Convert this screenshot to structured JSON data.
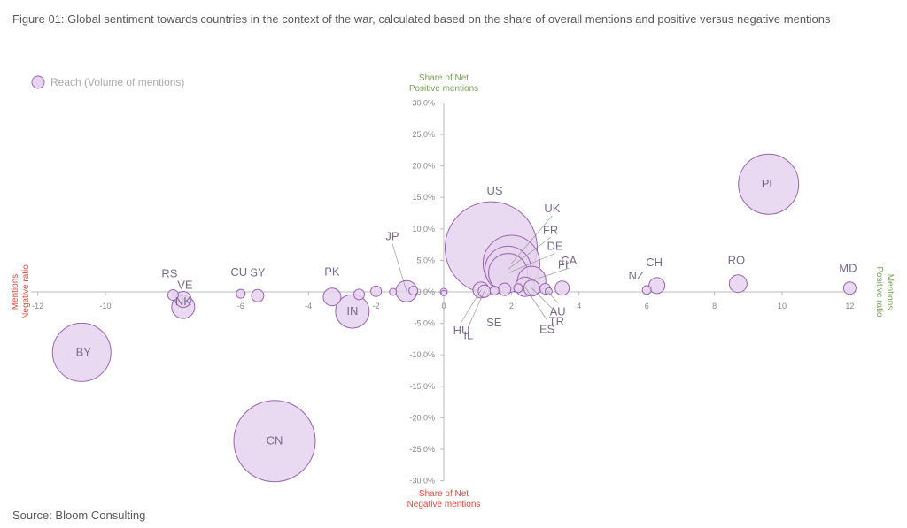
{
  "figure": {
    "title": "Figure 01: Global sentiment towards countries in the context of the war, calculated based on the share of overall mentions and positive versus negative mentions",
    "source": "Source: Bloom Consulting"
  },
  "colors": {
    "bubble_fill": "#e6d4ee",
    "bubble_stroke": "#9a63b3",
    "axis": "#bbbbbb",
    "positive": "#7aa255",
    "negative": "#e04a3a"
  },
  "chart_data": {
    "type": "scatter",
    "bubble": true,
    "legend": {
      "label": "Reach (Volume of mentions)",
      "placement": "top-left"
    },
    "axis_titles": {
      "top": [
        "Share of Net",
        "Positive mentions"
      ],
      "bottom": [
        "Share of Net",
        "Negative mentions"
      ],
      "left": [
        "Mentions",
        "Negative ratio"
      ],
      "right": [
        "Mentions",
        "Positive ratio"
      ]
    },
    "xlim": [
      -12,
      12
    ],
    "ylim": [
      -30,
      30
    ],
    "x_ticks": [
      -12,
      -10,
      -8,
      -6,
      -4,
      -2,
      0,
      2,
      4,
      6,
      8,
      10,
      12
    ],
    "x_tick_labels": [
      "-12",
      "-10",
      "",
      "-6",
      "-4",
      "-2",
      "0",
      "2",
      "4",
      "6",
      "8",
      "10",
      "12"
    ],
    "y_ticks": [
      30,
      25,
      20,
      15,
      10,
      5,
      0,
      -5,
      -10,
      -15,
      -20,
      -25,
      -30
    ],
    "y_tick_labels": [
      "30,0%",
      "25,0%",
      "20,0%",
      "15,0%",
      "10,0%",
      "5,0%",
      "0,0%",
      "-5,0%",
      "-10,0%",
      "-15,0%",
      "-20,0%",
      "-25,0%",
      "-30,0%"
    ],
    "grid": false,
    "points": [
      {
        "label": "PL",
        "x": 9.6,
        "y": 17.1,
        "r": 34
      },
      {
        "label": "US",
        "x": 1.4,
        "y": 7.0,
        "r": 52
      },
      {
        "label": "UK",
        "x": 2.0,
        "y": 4.5,
        "r": 32
      },
      {
        "label": "FR",
        "x": 1.9,
        "y": 3.6,
        "r": 26
      },
      {
        "label": "DE",
        "x": 1.9,
        "y": 3.0,
        "r": 22
      },
      {
        "label": "CA",
        "x": 2.6,
        "y": 1.8,
        "r": 16
      },
      {
        "label": "FI",
        "x": 3.5,
        "y": 0.6,
        "r": 8
      },
      {
        "label": "CH",
        "x": 6.3,
        "y": 1.0,
        "r": 9
      },
      {
        "label": "NZ",
        "x": 6.0,
        "y": 0.3,
        "r": 5
      },
      {
        "label": "RO",
        "x": 8.7,
        "y": 1.3,
        "r": 10
      },
      {
        "label": "MD",
        "x": 12.0,
        "y": 0.6,
        "r": 7
      },
      {
        "label": "AU",
        "x": 3.0,
        "y": 0.5,
        "r": 6
      },
      {
        "label": "TR",
        "x": 2.6,
        "y": 0.6,
        "r": 9
      },
      {
        "label": "ES",
        "x": 2.4,
        "y": 0.8,
        "r": 11
      },
      {
        "label": "SE",
        "x": 1.8,
        "y": 0.4,
        "r": 7
      },
      {
        "label": "IL",
        "x": 1.2,
        "y": 0.1,
        "r": 7
      },
      {
        "label": "HU",
        "x": 1.1,
        "y": 0.3,
        "r": 9
      },
      {
        "label": "JP",
        "x": -1.1,
        "y": 0.1,
        "r": 12
      },
      {
        "label": "PK",
        "x": -3.3,
        "y": -0.8,
        "r": 10
      },
      {
        "label": "IN",
        "x": -2.7,
        "y": -3.1,
        "r": 19
      },
      {
        "label": "SY",
        "x": -5.5,
        "y": -0.6,
        "r": 7
      },
      {
        "label": "CU",
        "x": -6.0,
        "y": -0.3,
        "r": 5
      },
      {
        "label": "RS",
        "x": -8.0,
        "y": -0.5,
        "r": 6
      },
      {
        "label": "VE",
        "x": -7.7,
        "y": -1.2,
        "r": 9
      },
      {
        "label": "NK",
        "x": -7.7,
        "y": -2.4,
        "r": 13
      },
      {
        "label": "BY",
        "x": -10.7,
        "y": -9.6,
        "r": 33
      },
      {
        "label": "CN",
        "x": -5.0,
        "y": -23.7,
        "r": 46
      },
      {
        "label": "",
        "x": -2.0,
        "y": 0.1,
        "r": 6
      },
      {
        "label": "",
        "x": -2.5,
        "y": -0.4,
        "r": 6
      },
      {
        "label": "",
        "x": -1.5,
        "y": 0.0,
        "r": 4
      },
      {
        "label": "",
        "x": -0.9,
        "y": 0.2,
        "r": 5
      },
      {
        "label": "",
        "x": 0.0,
        "y": 0.0,
        "r": 4
      },
      {
        "label": "",
        "x": 0.0,
        "y": -0.2,
        "r": 3
      },
      {
        "label": "",
        "x": 1.5,
        "y": 0.2,
        "r": 5
      },
      {
        "label": "",
        "x": 2.2,
        "y": 0.6,
        "r": 5
      },
      {
        "label": "",
        "x": 3.1,
        "y": 0.1,
        "r": 4
      }
    ],
    "labels": {
      "PL": {
        "dx": 0,
        "dy": 4
      },
      "US": {
        "dx": 4,
        "dy": -60
      },
      "UK": {
        "dx": 46,
        "dy": -58
      },
      "FR": {
        "dx": 48,
        "dy": -40
      },
      "DE": {
        "dx": 53,
        "dy": -26
      },
      "CA": {
        "dx": 42,
        "dy": -18
      },
      "FI": {
        "dx": 1,
        "dy": -22
      },
      "CH": {
        "dx": -3,
        "dy": -22
      },
      "NZ": {
        "dx": -12,
        "dy": -12
      },
      "RO": {
        "dx": -2,
        "dy": -22
      },
      "MD": {
        "dx": -2,
        "dy": -18
      },
      "AU": {
        "dx": 14,
        "dy": 30
      },
      "TR": {
        "dx": 28,
        "dy": 42
      },
      "ES": {
        "dx": 25,
        "dy": 52
      },
      "SE": {
        "dx": -12,
        "dy": 42
      },
      "IL": {
        "dx": -18,
        "dy": 54
      },
      "HU": {
        "dx": -22,
        "dy": 50
      },
      "JP": {
        "dx": -16,
        "dy": -58
      },
      "PK": {
        "dx": 0,
        "dy": -24
      },
      "IN": {
        "dx": 0,
        "dy": 4
      },
      "SY": {
        "dx": 0,
        "dy": -22
      },
      "CU": {
        "dx": -2,
        "dy": -20
      },
      "RS": {
        "dx": -4,
        "dy": -20
      },
      "VE": {
        "dx": 2,
        "dy": -12
      },
      "NK": {
        "dx": 0,
        "dy": -2
      },
      "BY": {
        "dx": 2,
        "dy": 4
      },
      "CN": {
        "dx": 0,
        "dy": 4
      }
    }
  }
}
